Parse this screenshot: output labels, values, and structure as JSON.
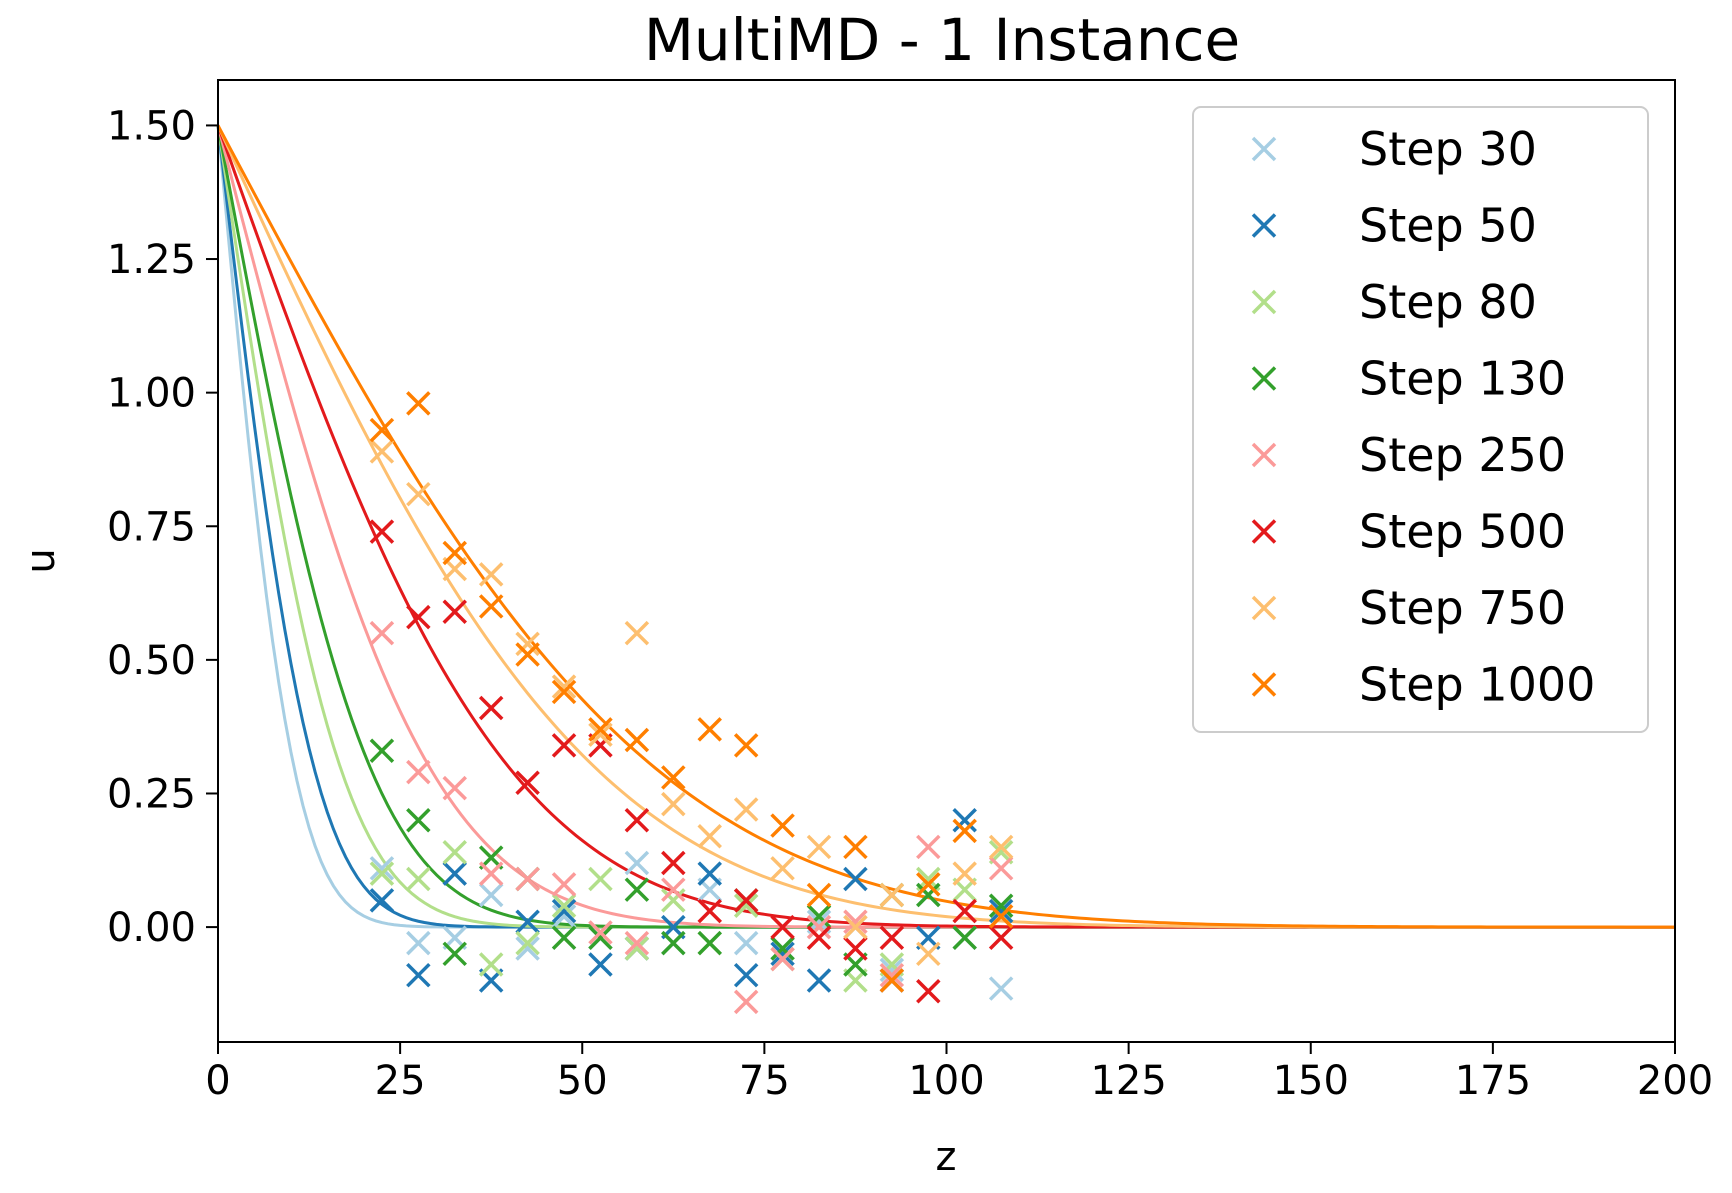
{
  "chart_data": {
    "type": "scatter",
    "title": "MultiMD - 1 Instance",
    "xlabel": "z",
    "ylabel": "u",
    "xlim": [
      0,
      200
    ],
    "ylim": [
      -0.215,
      1.585
    ],
    "x_ticks": [
      0,
      25,
      50,
      75,
      100,
      125,
      150,
      175,
      200
    ],
    "y_ticks": [
      0.0,
      0.25,
      0.5,
      0.75,
      1.0,
      1.25,
      1.5
    ],
    "grid": false,
    "legend_position": "top-right",
    "fit": {
      "form": "1.5 * erfc(z / L)",
      "x_range": [
        0,
        200
      ]
    },
    "series": [
      {
        "name": "Step 30",
        "color": "#a6cee3",
        "fit_length": 11.5,
        "points": [
          [
            22.5,
            0.11
          ],
          [
            27.5,
            -0.03
          ],
          [
            32.5,
            -0.02
          ],
          [
            37.5,
            0.06
          ],
          [
            42.5,
            -0.04
          ],
          [
            47.5,
            0.02
          ],
          [
            52.5,
            -0.02
          ],
          [
            57.5,
            0.12
          ],
          [
            62.5,
            -0.03
          ],
          [
            67.5,
            0.07
          ],
          [
            72.5,
            -0.03
          ],
          [
            77.5,
            -0.04
          ],
          [
            82.5,
            0.01
          ],
          [
            87.5,
            0.0
          ],
          [
            92.5,
            -0.08
          ],
          [
            97.5,
            0.06
          ],
          [
            102.5,
            -0.02
          ],
          [
            107.5,
            -0.115
          ]
        ]
      },
      {
        "name": "Step 50",
        "color": "#1f78b4",
        "fit_length": 14.5,
        "points": [
          [
            22.5,
            0.05
          ],
          [
            27.5,
            -0.09
          ],
          [
            32.5,
            0.1
          ],
          [
            37.5,
            -0.1
          ],
          [
            42.5,
            0.01
          ],
          [
            47.5,
            0.03
          ],
          [
            52.5,
            -0.07
          ],
          [
            57.5,
            -0.04
          ],
          [
            62.5,
            0.0
          ],
          [
            67.5,
            0.1
          ],
          [
            72.5,
            -0.09
          ],
          [
            77.5,
            -0.05
          ],
          [
            82.5,
            -0.1
          ],
          [
            87.5,
            0.09
          ],
          [
            92.5,
            -0.1
          ],
          [
            97.5,
            -0.02
          ],
          [
            102.5,
            0.2
          ],
          [
            107.5,
            0.03
          ]
        ]
      },
      {
        "name": "Step 80",
        "color": "#b2df8a",
        "fit_length": 18.5,
        "points": [
          [
            22.5,
            0.1
          ],
          [
            27.5,
            0.09
          ],
          [
            32.5,
            0.14
          ],
          [
            37.5,
            -0.07
          ],
          [
            42.5,
            -0.03
          ],
          [
            47.5,
            0.04
          ],
          [
            52.5,
            0.09
          ],
          [
            57.5,
            -0.04
          ],
          [
            62.5,
            0.05
          ],
          [
            67.5,
            -0.03
          ],
          [
            72.5,
            0.04
          ],
          [
            77.5,
            -0.06
          ],
          [
            82.5,
            0.02
          ],
          [
            87.5,
            -0.1
          ],
          [
            92.5,
            -0.07
          ],
          [
            97.5,
            0.09
          ],
          [
            102.5,
            0.07
          ],
          [
            107.5,
            0.14
          ]
        ]
      },
      {
        "name": "Step 130",
        "color": "#33a02c",
        "fit_length": 23.0,
        "points": [
          [
            22.5,
            0.33
          ],
          [
            27.5,
            0.2
          ],
          [
            32.5,
            -0.05
          ],
          [
            37.5,
            0.13
          ],
          [
            42.5,
            0.09
          ],
          [
            47.5,
            -0.02
          ],
          [
            52.5,
            -0.02
          ],
          [
            57.5,
            0.07
          ],
          [
            62.5,
            -0.03
          ],
          [
            67.5,
            -0.03
          ],
          [
            72.5,
            0.05
          ],
          [
            77.5,
            -0.04
          ],
          [
            82.5,
            0.02
          ],
          [
            87.5,
            -0.07
          ],
          [
            92.5,
            0.06
          ],
          [
            97.5,
            0.06
          ],
          [
            102.5,
            -0.02
          ],
          [
            107.5,
            0.04
          ]
        ]
      },
      {
        "name": "Step 250",
        "color": "#fb9a99",
        "fit_length": 32.0,
        "points": [
          [
            22.5,
            0.55
          ],
          [
            27.5,
            0.29
          ],
          [
            32.5,
            0.26
          ],
          [
            37.5,
            0.1
          ],
          [
            42.5,
            0.09
          ],
          [
            47.5,
            0.08
          ],
          [
            52.5,
            -0.01
          ],
          [
            57.5,
            -0.03
          ],
          [
            62.5,
            0.07
          ],
          [
            67.5,
            0.03
          ],
          [
            72.5,
            -0.14
          ],
          [
            77.5,
            -0.06
          ],
          [
            82.5,
            0.0
          ],
          [
            87.5,
            0.01
          ],
          [
            92.5,
            -0.09
          ],
          [
            97.5,
            0.15
          ],
          [
            102.5,
            0.03
          ],
          [
            107.5,
            0.11
          ]
        ]
      },
      {
        "name": "Step 500",
        "color": "#e31a1c",
        "fit_length": 44.0,
        "points": [
          [
            22.5,
            0.74
          ],
          [
            27.5,
            0.58
          ],
          [
            32.5,
            0.59
          ],
          [
            37.5,
            0.41
          ],
          [
            42.5,
            0.27
          ],
          [
            47.5,
            0.34
          ],
          [
            52.5,
            0.34
          ],
          [
            57.5,
            0.2
          ],
          [
            62.5,
            0.12
          ],
          [
            67.5,
            0.03
          ],
          [
            72.5,
            0.05
          ],
          [
            77.5,
            0.0
          ],
          [
            82.5,
            -0.02
          ],
          [
            87.5,
            -0.04
          ],
          [
            92.5,
            -0.02
          ],
          [
            97.5,
            -0.12
          ],
          [
            102.5,
            0.03
          ],
          [
            107.5,
            -0.02
          ]
        ]
      },
      {
        "name": "Step 750",
        "color": "#fdbf6f",
        "fit_length": 57.0,
        "points": [
          [
            22.5,
            0.89
          ],
          [
            27.5,
            0.81
          ],
          [
            32.5,
            0.67
          ],
          [
            37.5,
            0.66
          ],
          [
            42.5,
            0.53
          ],
          [
            47.5,
            0.45
          ],
          [
            52.5,
            0.36
          ],
          [
            57.5,
            0.55
          ],
          [
            62.5,
            0.23
          ],
          [
            67.5,
            0.17
          ],
          [
            72.5,
            0.22
          ],
          [
            77.5,
            0.11
          ],
          [
            82.5,
            0.15
          ],
          [
            87.5,
            0.0
          ],
          [
            92.5,
            0.06
          ],
          [
            97.5,
            -0.05
          ],
          [
            102.5,
            0.1
          ],
          [
            107.5,
            0.15
          ]
        ]
      },
      {
        "name": "Step 1000",
        "color": "#ff7f00",
        "fit_length": 66.0,
        "points": [
          [
            22.5,
            0.93
          ],
          [
            27.5,
            0.98
          ],
          [
            32.5,
            0.7
          ],
          [
            37.5,
            0.6
          ],
          [
            42.5,
            0.51
          ],
          [
            47.5,
            0.44
          ],
          [
            52.5,
            0.37
          ],
          [
            57.5,
            0.35
          ],
          [
            62.5,
            0.28
          ],
          [
            67.5,
            0.37
          ],
          [
            72.5,
            0.34
          ],
          [
            77.5,
            0.19
          ],
          [
            82.5,
            0.06
          ],
          [
            87.5,
            0.15
          ],
          [
            92.5,
            -0.1
          ],
          [
            97.5,
            0.08
          ],
          [
            102.5,
            0.18
          ],
          [
            107.5,
            0.02
          ]
        ]
      }
    ]
  }
}
